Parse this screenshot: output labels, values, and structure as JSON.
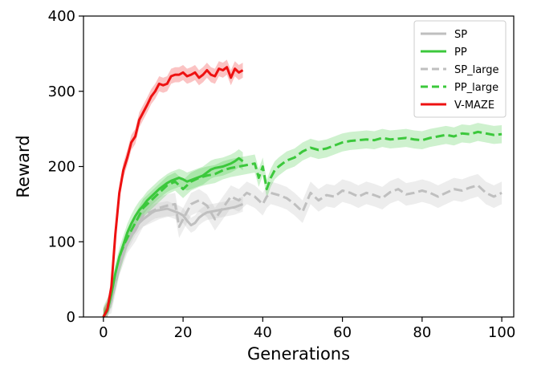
{
  "chart_data": {
    "type": "line",
    "title": "",
    "xlabel": "Generations",
    "ylabel": "Reward",
    "xlim": [
      -5,
      103
    ],
    "ylim": [
      0,
      400
    ],
    "xticks": [
      0,
      20,
      40,
      60,
      80,
      100
    ],
    "yticks": [
      0,
      100,
      200,
      300,
      400
    ],
    "grid": false,
    "legend_position": "top-right",
    "series": [
      {
        "name": "SP",
        "color": "#bfbfbf",
        "dash": "solid",
        "x": [
          0,
          1,
          2,
          3,
          4,
          5,
          6,
          7,
          8,
          9,
          10,
          11,
          12,
          13,
          14,
          15,
          16,
          17,
          18,
          19,
          20,
          21,
          22,
          23,
          24,
          25,
          26,
          27,
          28,
          29,
          30,
          31,
          32,
          33,
          34,
          35
        ],
        "y": [
          0,
          5,
          22,
          48,
          68,
          85,
          98,
          108,
          118,
          125,
          130,
          134,
          138,
          141,
          142,
          143,
          144,
          142,
          140,
          138,
          135,
          128,
          122,
          125,
          132,
          136,
          139,
          140,
          141,
          142,
          143,
          144,
          145,
          146,
          148,
          150
        ],
        "band": 10
      },
      {
        "name": "PP",
        "color": "#3cc83c",
        "dash": "solid",
        "x": [
          0,
          1,
          2,
          3,
          4,
          5,
          6,
          7,
          8,
          9,
          10,
          11,
          12,
          13,
          14,
          15,
          16,
          17,
          18,
          19,
          20,
          21,
          22,
          23,
          24,
          25,
          26,
          27,
          28,
          29,
          30,
          31,
          32,
          33,
          34,
          35
        ],
        "y": [
          0,
          8,
          30,
          58,
          80,
          96,
          112,
          124,
          134,
          142,
          148,
          155,
          160,
          165,
          170,
          174,
          178,
          181,
          183,
          185,
          183,
          180,
          182,
          184,
          186,
          188,
          192,
          196,
          198,
          199,
          200,
          202,
          204,
          207,
          211,
          207
        ],
        "band": 12
      },
      {
        "name": "SP_large",
        "color": "#bfbfbf",
        "dash": "dashed",
        "x": [
          0,
          2,
          4,
          6,
          8,
          10,
          12,
          14,
          16,
          18,
          19,
          20,
          22,
          24,
          26,
          28,
          30,
          32,
          34,
          36,
          38,
          40,
          41,
          42,
          44,
          46,
          48,
          50,
          52,
          54,
          56,
          58,
          60,
          62,
          64,
          66,
          68,
          70,
          72,
          74,
          76,
          78,
          80,
          82,
          84,
          86,
          88,
          90,
          92,
          94,
          96,
          98,
          100
        ],
        "y": [
          0,
          20,
          70,
          100,
          115,
          135,
          140,
          145,
          148,
          150,
          120,
          130,
          150,
          155,
          148,
          130,
          145,
          160,
          155,
          165,
          160,
          150,
          160,
          165,
          162,
          158,
          150,
          140,
          165,
          155,
          162,
          160,
          168,
          165,
          160,
          165,
          162,
          158,
          166,
          170,
          163,
          165,
          168,
          165,
          160,
          165,
          170,
          168,
          172,
          175,
          165,
          160,
          165
        ],
        "band": 15
      },
      {
        "name": "PP_large",
        "color": "#3cc83c",
        "dash": "dashed",
        "x": [
          0,
          2,
          4,
          6,
          8,
          10,
          12,
          14,
          16,
          18,
          20,
          22,
          24,
          26,
          28,
          30,
          32,
          34,
          36,
          38,
          39,
          40,
          41,
          42,
          43,
          44,
          46,
          48,
          50,
          52,
          54,
          56,
          58,
          60,
          62,
          64,
          66,
          68,
          70,
          72,
          74,
          76,
          78,
          80,
          82,
          84,
          86,
          88,
          90,
          92,
          94,
          96,
          98,
          100
        ],
        "y": [
          0,
          25,
          70,
          105,
          125,
          145,
          155,
          165,
          175,
          180,
          170,
          180,
          185,
          188,
          190,
          195,
          198,
          200,
          202,
          204,
          185,
          200,
          170,
          185,
          195,
          200,
          208,
          212,
          220,
          225,
          222,
          224,
          228,
          232,
          234,
          235,
          236,
          235,
          238,
          236,
          237,
          238,
          236,
          235,
          238,
          240,
          242,
          240,
          244,
          243,
          246,
          244,
          242,
          243
        ],
        "band": 12
      },
      {
        "name": "V-MAZE",
        "color": "#ee1111",
        "dash": "solid",
        "x": [
          0,
          1,
          2,
          3,
          4,
          5,
          6,
          7,
          8,
          9,
          10,
          11,
          12,
          13,
          14,
          15,
          16,
          17,
          18,
          19,
          20,
          21,
          22,
          23,
          24,
          25,
          26,
          27,
          28,
          29,
          30,
          31,
          32,
          33,
          34,
          35
        ],
        "y": [
          0,
          10,
          40,
          110,
          165,
          195,
          212,
          232,
          240,
          262,
          272,
          282,
          293,
          300,
          310,
          308,
          310,
          320,
          322,
          322,
          325,
          320,
          322,
          325,
          318,
          322,
          328,
          322,
          320,
          330,
          328,
          332,
          318,
          330,
          325,
          328
        ],
        "band": 10
      }
    ]
  }
}
